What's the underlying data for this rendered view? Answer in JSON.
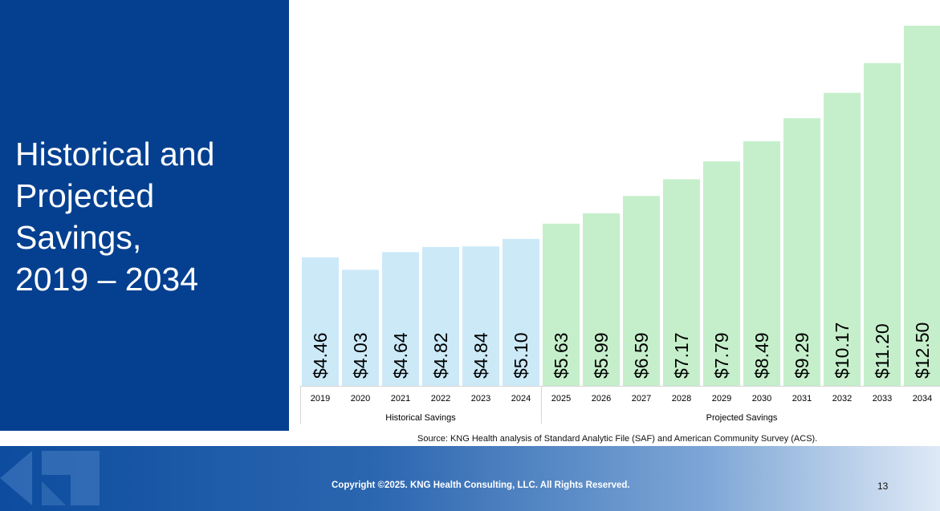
{
  "slide": {
    "title_lines": [
      "Historical and",
      "Projected",
      "Savings,",
      "2019 – 2034"
    ],
    "source": "Source: KNG Health analysis of Standard Analytic File (SAF) and American Community Survey (ACS).",
    "copyright": "Copyright ©2025. KNG Health Consulting, LLC. All Rights Reserved.",
    "page_number": "13"
  },
  "colors": {
    "left_panel": "#054090",
    "historical_bar": "#cce9f8",
    "projected_bar": "#c5efcb",
    "footer_start": "#0d4c9e",
    "footer_end": "#dfe9f6"
  },
  "chart_data": {
    "type": "bar",
    "categories": [
      "2019",
      "2020",
      "2021",
      "2022",
      "2023",
      "2024",
      "2025",
      "2026",
      "2027",
      "2028",
      "2029",
      "2030",
      "2031",
      "2032",
      "2033",
      "2034"
    ],
    "values": [
      4.46,
      4.03,
      4.64,
      4.82,
      4.84,
      5.1,
      5.63,
      5.99,
      6.59,
      7.17,
      7.79,
      8.49,
      9.29,
      10.17,
      11.2,
      12.5
    ],
    "labels": [
      "$4.46",
      "$4.03",
      "$4.64",
      "$4.82",
      "$4.84",
      "$5.10",
      "$5.63",
      "$5.99",
      "$6.59",
      "$7.17",
      "$7.79",
      "$8.49",
      "$9.29",
      "$10.17",
      "$11.20",
      "$12.50"
    ],
    "groups": [
      {
        "name": "Historical Savings",
        "categories": [
          "2019",
          "2020",
          "2021",
          "2022",
          "2023",
          "2024"
        ]
      },
      {
        "name": "Projected Savings",
        "categories": [
          "2025",
          "2026",
          "2027",
          "2028",
          "2029",
          "2030",
          "2031",
          "2032",
          "2033",
          "2034"
        ]
      }
    ],
    "title": "",
    "xlabel": "",
    "ylabel": "",
    "ylim": [
      0,
      12.5
    ],
    "grid": false,
    "legend": "none",
    "data_label_orientation": "vertical"
  }
}
